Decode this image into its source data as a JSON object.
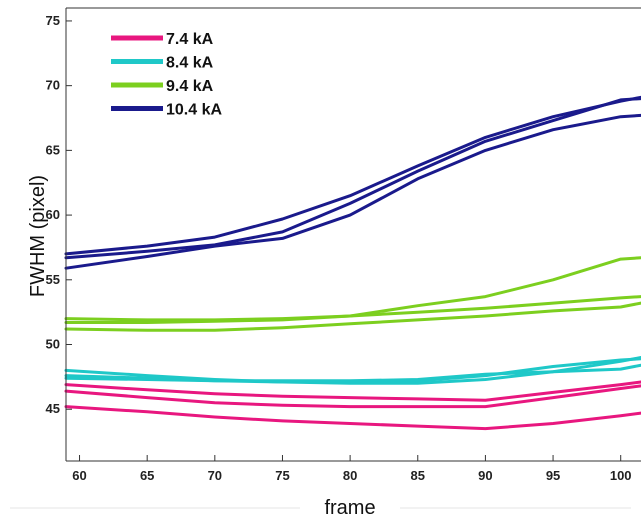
{
  "chart_data": {
    "type": "line",
    "xlabel": "frame",
    "ylabel": "FWHM (pixel)",
    "xlim": [
      59,
      101.5
    ],
    "ylim": [
      41,
      76
    ],
    "xticks": [
      60,
      65,
      70,
      75,
      80,
      85,
      90,
      95,
      100
    ],
    "yticks": [
      45,
      50,
      55,
      60,
      65,
      70,
      75
    ],
    "legend_position": "top-left",
    "grid": false,
    "series": [
      {
        "name": "7.4 kA",
        "color": "#e8177f",
        "traces": [
          {
            "x": [
              59,
              65,
              70,
              75,
              80,
              85,
              90,
              95,
              100,
              101.5
            ],
            "y": [
              45.2,
              44.8,
              44.4,
              44.1,
              43.9,
              43.7,
              43.5,
              43.9,
              44.5,
              44.7
            ]
          },
          {
            "x": [
              59,
              65,
              70,
              75,
              80,
              85,
              90,
              95,
              100,
              101.5
            ],
            "y": [
              46.4,
              45.9,
              45.5,
              45.3,
              45.2,
              45.2,
              45.2,
              45.9,
              46.6,
              46.8
            ]
          },
          {
            "x": [
              59,
              65,
              70,
              75,
              80,
              85,
              90,
              95,
              100,
              101.5
            ],
            "y": [
              46.9,
              46.5,
              46.2,
              46.0,
              45.9,
              45.8,
              45.7,
              46.3,
              46.9,
              47.1
            ]
          }
        ]
      },
      {
        "name": "8.4 kA",
        "color": "#1fc8c8",
        "traces": [
          {
            "x": [
              59,
              65,
              70,
              75,
              80,
              85,
              90,
              95,
              100,
              101.5
            ],
            "y": [
              48.0,
              47.6,
              47.3,
              47.1,
              47.0,
              47.0,
              47.3,
              47.9,
              48.7,
              49.0
            ]
          },
          {
            "x": [
              59,
              65,
              70,
              75,
              80,
              85,
              90,
              95,
              100,
              101.5
            ],
            "y": [
              47.6,
              47.4,
              47.2,
              47.1,
              47.1,
              47.2,
              47.6,
              48.3,
              48.8,
              48.9
            ]
          },
          {
            "x": [
              59,
              65,
              70,
              75,
              80,
              85,
              90,
              95,
              100,
              101.5
            ],
            "y": [
              47.4,
              47.3,
              47.2,
              47.2,
              47.2,
              47.3,
              47.7,
              47.9,
              48.1,
              48.4
            ]
          }
        ]
      },
      {
        "name": "9.4 kA",
        "color": "#7ccf1f",
        "traces": [
          {
            "x": [
              59,
              65,
              70,
              75,
              80,
              85,
              90,
              95,
              100,
              101.5
            ],
            "y": [
              52.0,
              51.9,
              51.9,
              52.0,
              52.2,
              53.0,
              53.7,
              55.0,
              56.6,
              56.7
            ]
          },
          {
            "x": [
              59,
              65,
              70,
              75,
              80,
              85,
              90,
              95,
              100,
              101.5
            ],
            "y": [
              51.7,
              51.7,
              51.8,
              51.9,
              52.2,
              52.5,
              52.8,
              53.2,
              53.6,
              53.7
            ]
          },
          {
            "x": [
              59,
              65,
              70,
              75,
              80,
              85,
              90,
              95,
              100,
              101.5
            ],
            "y": [
              51.2,
              51.1,
              51.1,
              51.3,
              51.6,
              51.9,
              52.2,
              52.6,
              52.9,
              53.2
            ]
          }
        ]
      },
      {
        "name": "10.4 kA",
        "color": "#1a1a8c",
        "traces": [
          {
            "x": [
              59,
              65,
              70,
              75,
              80,
              85,
              90,
              95,
              100,
              101.5
            ],
            "y": [
              57.0,
              57.6,
              58.3,
              59.7,
              61.5,
              63.8,
              66.0,
              67.6,
              68.8,
              69.1
            ]
          },
          {
            "x": [
              59,
              65,
              70,
              75,
              80,
              85,
              90,
              95,
              100,
              101.5
            ],
            "y": [
              56.7,
              57.2,
              57.7,
              58.7,
              60.9,
              63.4,
              65.7,
              67.3,
              68.9,
              69.0
            ]
          },
          {
            "x": [
              59,
              65,
              70,
              75,
              80,
              85,
              90,
              95,
              100,
              101.5
            ],
            "y": [
              55.9,
              56.8,
              57.6,
              58.2,
              60.0,
              62.8,
              65.0,
              66.6,
              67.6,
              67.7
            ]
          }
        ]
      }
    ]
  }
}
